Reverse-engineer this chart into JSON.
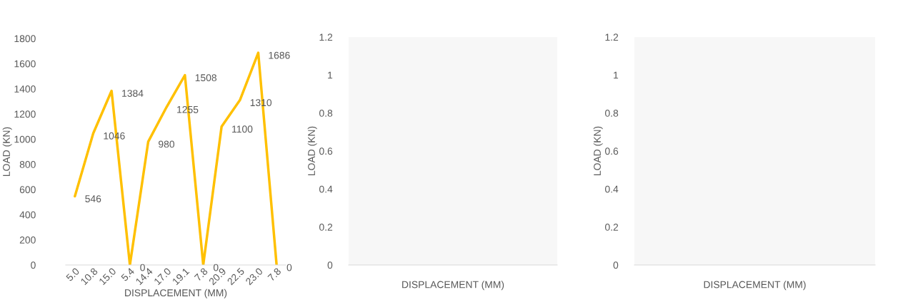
{
  "chart_data": [
    {
      "type": "line",
      "xlabel": "DISPLACEMENT (MM)",
      "ylabel": "LOAD (KN)",
      "categories": [
        "5.0",
        "10.8",
        "15.0",
        "5.4",
        "14.4",
        "17.0",
        "19.1",
        "7.8",
        "20.9",
        "22.5",
        "23.0",
        "7.8"
      ],
      "series": [
        {
          "color": "#ffc000",
          "values": [
            546,
            1046,
            1384,
            0,
            980,
            1255,
            1508,
            0,
            1100,
            1310,
            1686,
            0
          ]
        }
      ],
      "ylim": [
        0,
        1800
      ],
      "yticks": [
        0,
        200,
        400,
        600,
        800,
        1000,
        1200,
        1400,
        1600,
        1800
      ],
      "data_labels": true,
      "grid": false,
      "marker": "none",
      "line_style": "solid"
    },
    {
      "type": "line",
      "xlabel": "DISPLACEMENT (MM)",
      "ylabel": "LOAD (KN)",
      "categories": [
        null
      ],
      "ylim": [
        0,
        1.2
      ],
      "yticks": [
        0,
        0.2,
        0.4,
        0.6,
        0.8,
        {
          "value": 1,
          "label": "1"
        },
        1.2
      ],
      "grid": false
    },
    {
      "type": "line",
      "xlabel": "DISPLACEMENT (MM)",
      "ylabel": "LOAD (KN)",
      "categories": [
        null
      ],
      "ylim": [
        0,
        1.2
      ],
      "yticks": [
        0,
        0.2,
        0.4,
        0.6,
        0.8,
        {
          "value": 1,
          "label": "1"
        },
        1.2
      ],
      "grid": false
    }
  ]
}
